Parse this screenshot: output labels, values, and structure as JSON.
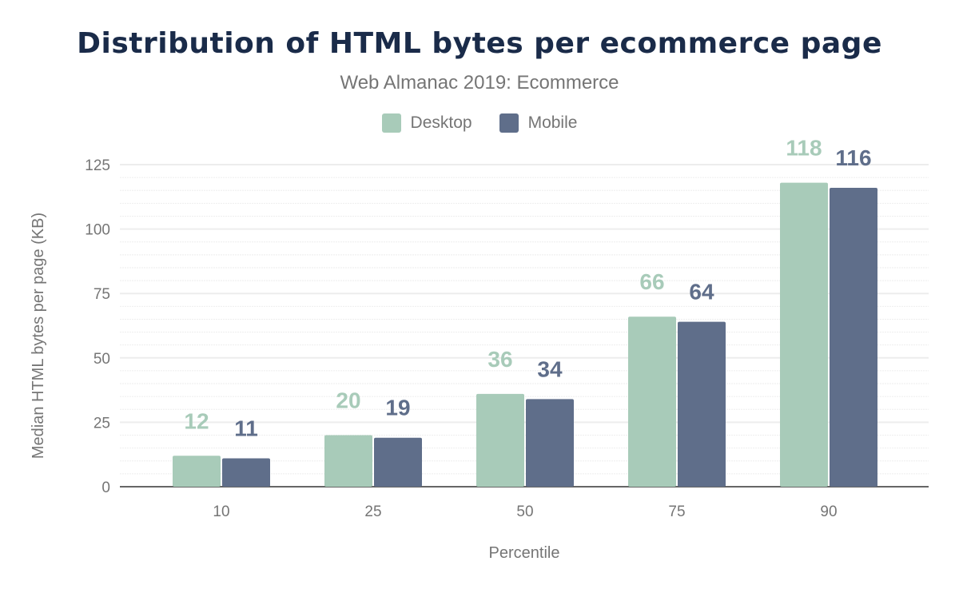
{
  "chart_data": {
    "type": "bar",
    "title": "Distribution of HTML bytes per ecommerce page",
    "subtitle": "Web Almanac 2019: Ecommerce",
    "xlabel": "Percentile",
    "ylabel": "Median HTML bytes per page (KB)",
    "categories": [
      "10",
      "25",
      "50",
      "75",
      "90"
    ],
    "series": [
      {
        "name": "Desktop",
        "color": "#a8cbb9",
        "values": [
          12,
          20,
          36,
          66,
          118
        ]
      },
      {
        "name": "Mobile",
        "color": "#5f6e8a",
        "values": [
          11,
          19,
          34,
          64,
          116
        ]
      }
    ],
    "ylim": [
      0,
      125
    ],
    "yticks": [
      "0",
      "25",
      "50",
      "75",
      "100",
      "125"
    ],
    "grid": true,
    "legend": "top"
  }
}
